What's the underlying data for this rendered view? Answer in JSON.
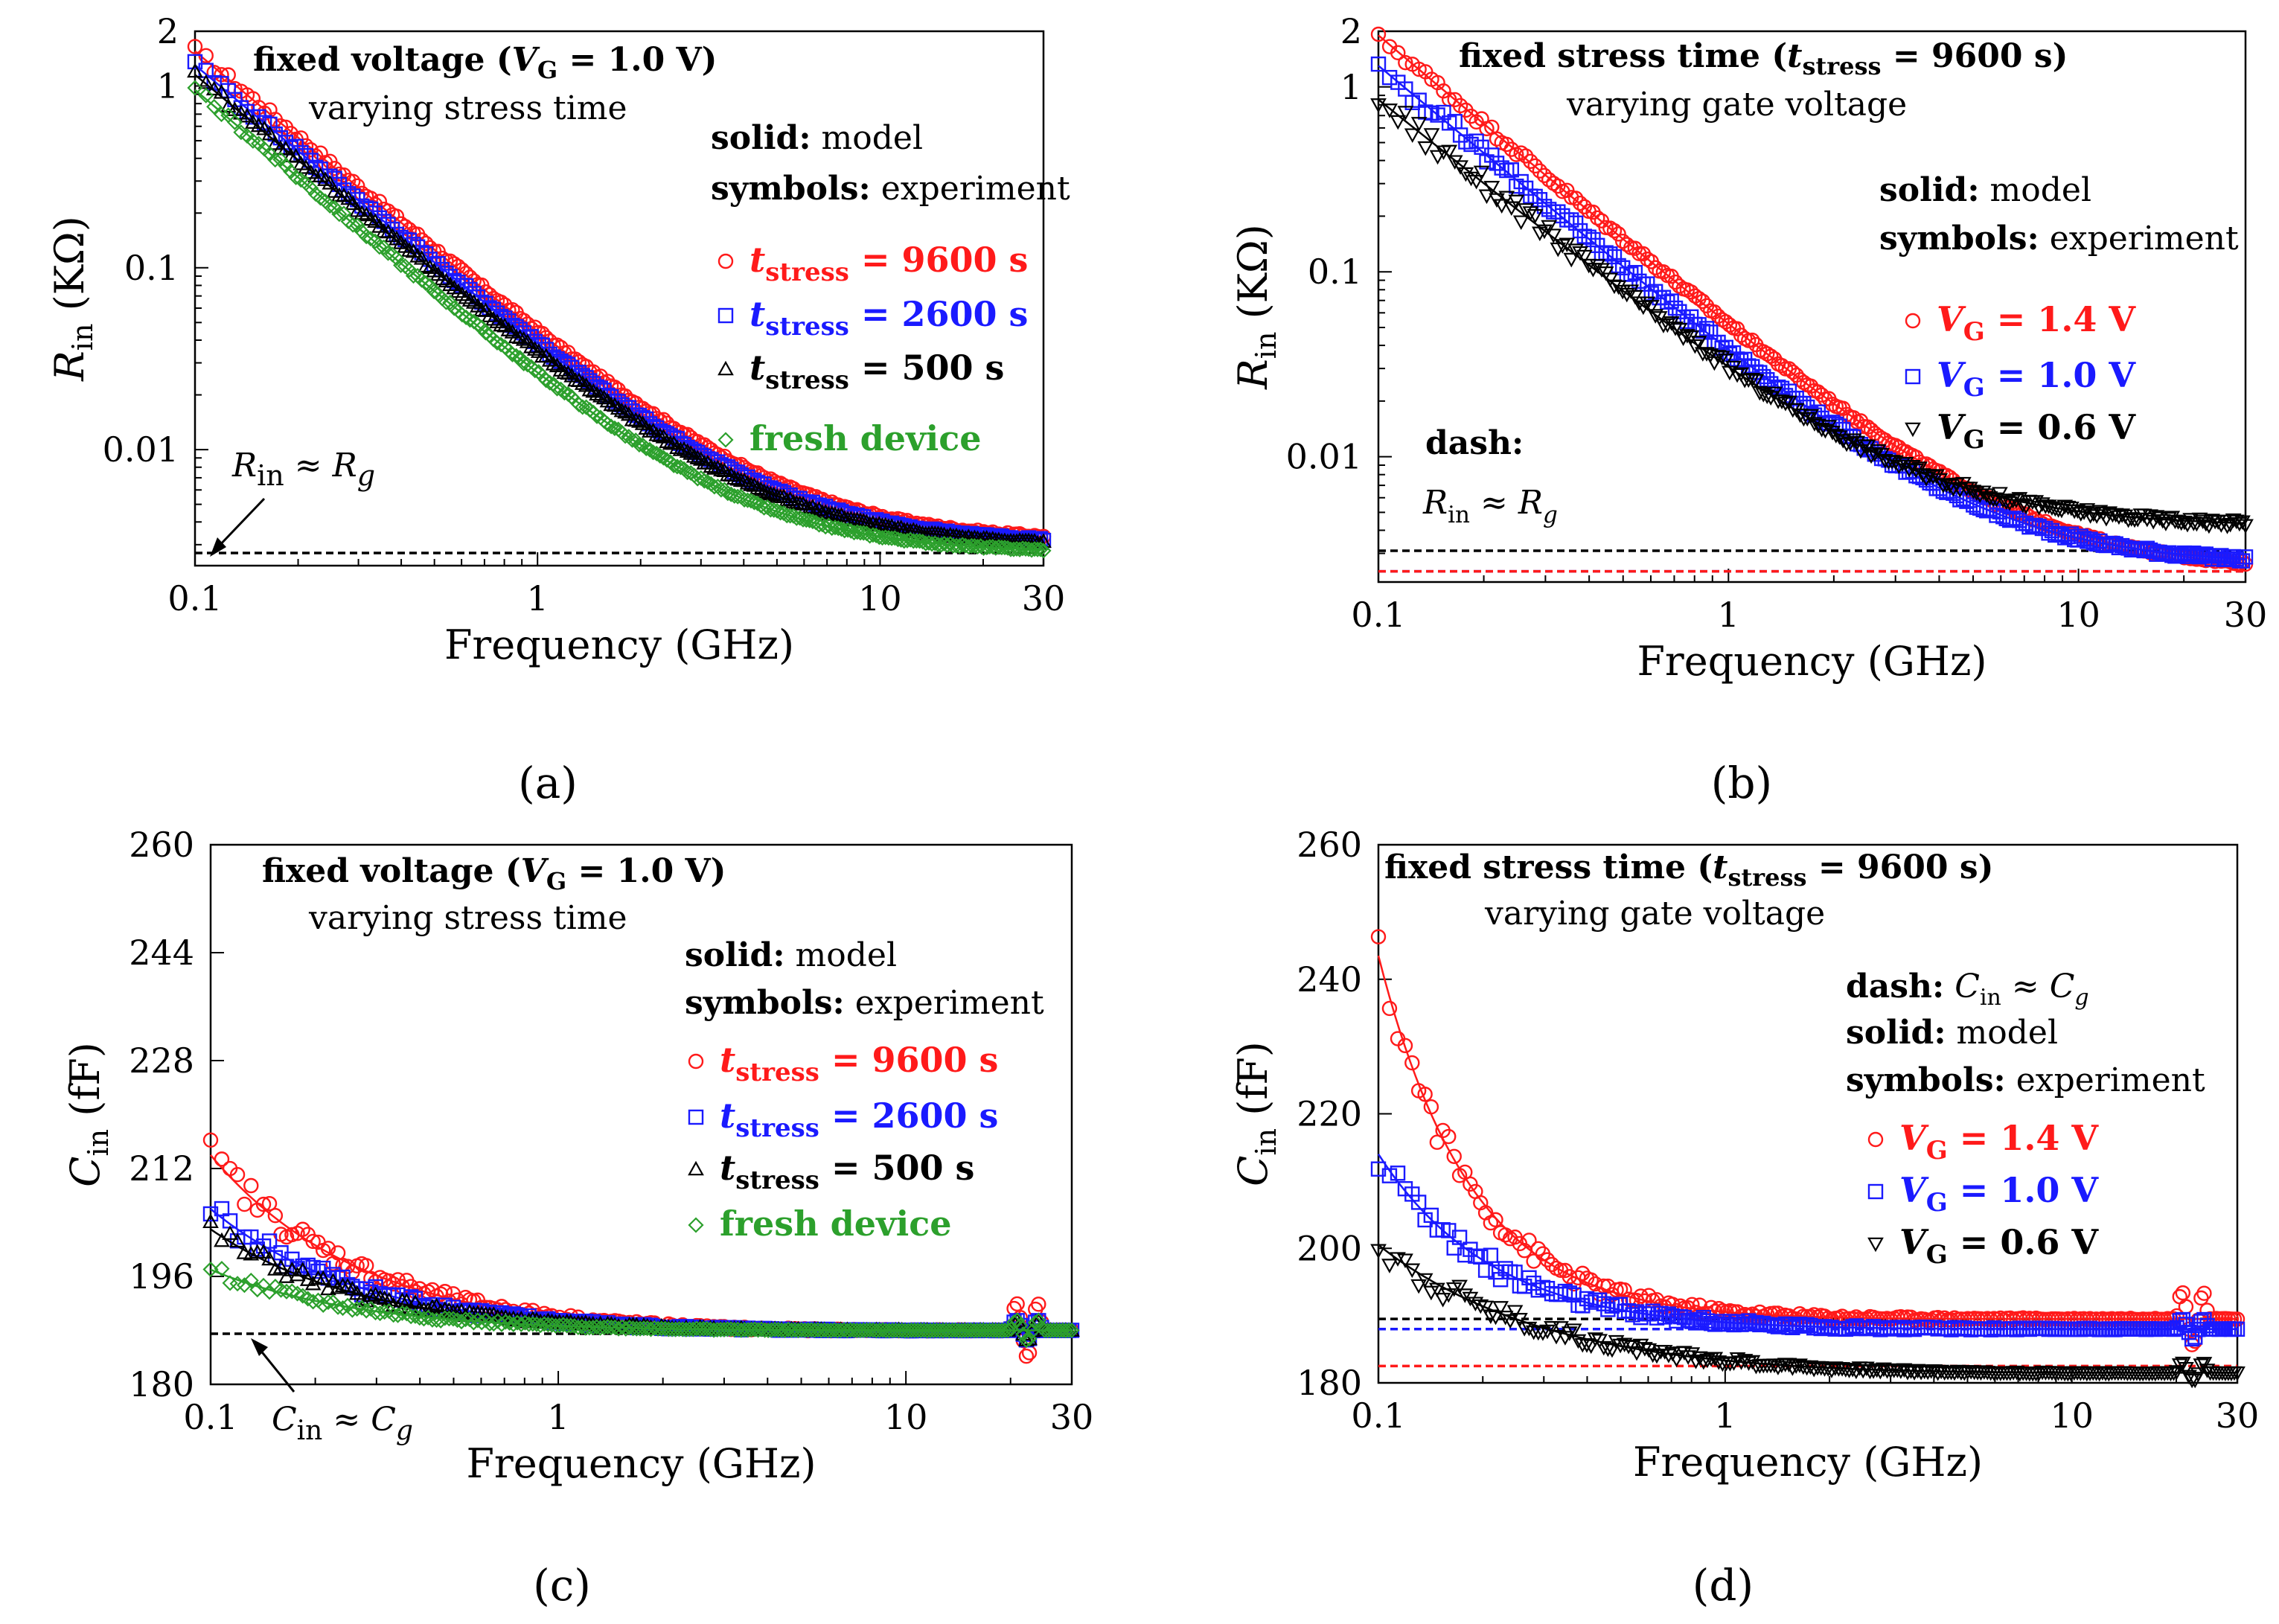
{
  "figure": {
    "panels": [
      {
        "id": "a",
        "label": "(a)"
      },
      {
        "id": "b",
        "label": "(b)"
      },
      {
        "id": "c",
        "label": "(c)"
      },
      {
        "id": "d",
        "label": "(d)"
      }
    ]
  },
  "colors": {
    "red": "#ff1a1a",
    "blue": "#1a1aff",
    "black": "#000000",
    "green": "#2ca02c"
  },
  "chart_data": [
    {
      "id": "a",
      "type": "scatter",
      "xscale": "log",
      "yscale": "log",
      "xlabel": "Frequency (GHz)",
      "ylabel": "R_in (KΩ)",
      "xlim": [
        0.1,
        30
      ],
      "ylim": [
        0.0023,
        2
      ],
      "xticks": [
        {
          "v": 0.1,
          "l": "0.1"
        },
        {
          "v": 1,
          "l": "1"
        },
        {
          "v": 10,
          "l": "10"
        },
        {
          "v": 30,
          "l": "30"
        }
      ],
      "yticks": [
        {
          "v": 0.01,
          "l": "0.01"
        },
        {
          "v": 0.1,
          "l": "0.1"
        },
        {
          "v": 1,
          "l": "1"
        },
        {
          "v": 2,
          "l": "2"
        }
      ],
      "title_line1_pre": "fixed voltage (",
      "title_line1_var": "V",
      "title_line1_sub": "G",
      "title_line1_post": " = 1.0 V)",
      "title_line2": "varying stress time",
      "note_solid_key": "solid:",
      "note_solid_val": " model",
      "note_symbols_key": "symbols:",
      "note_symbols_val": " experiment",
      "ref_label_main": "R",
      "ref_label_sub": "in",
      "ref_label_rel": " ≈ ",
      "ref_label_main2": "R",
      "ref_label_sub2": "g",
      "ref_line": 0.0027,
      "series": [
        {
          "name": "t_stress = 9600 s",
          "var": "t",
          "sub": "stress",
          "val": " = 9600 s",
          "color": "#ff1a1a",
          "marker": "circle",
          "A": 1.55,
          "p": 1.45,
          "c": 0.0031,
          "k": 0.32,
          "noise": 0.06
        },
        {
          "name": "t_stress = 2600 s",
          "var": "t",
          "sub": "stress",
          "val": " = 2600 s",
          "color": "#1a1aff",
          "marker": "square",
          "A": 1.3,
          "p": 1.45,
          "c": 0.003,
          "k": 0.3,
          "noise": 0.05
        },
        {
          "name": "t_stress = 500 s",
          "var": "t",
          "sub": "stress",
          "val": " = 500 s",
          "color": "#000000",
          "marker": "triangle",
          "A": 1.15,
          "p": 1.45,
          "c": 0.0029,
          "k": 0.28,
          "noise": 0.05
        },
        {
          "name": "fresh device",
          "var": "",
          "sub": "",
          "val": "fresh device",
          "color": "#2ca02c",
          "marker": "diamond",
          "A": 0.95,
          "p": 1.5,
          "c": 0.0027,
          "k": 0.26,
          "noise": 0.04
        }
      ]
    },
    {
      "id": "b",
      "type": "scatter",
      "xscale": "log",
      "yscale": "log",
      "xlabel": "Frequency (GHz)",
      "ylabel": "R_in (KΩ)",
      "xlim": [
        0.1,
        30
      ],
      "ylim": [
        0.0021,
        2
      ],
      "xticks": [
        {
          "v": 0.1,
          "l": "0.1"
        },
        {
          "v": 1,
          "l": "1"
        },
        {
          "v": 10,
          "l": "10"
        },
        {
          "v": 30,
          "l": "30"
        }
      ],
      "yticks": [
        {
          "v": 0.01,
          "l": "0.01"
        },
        {
          "v": 0.1,
          "l": "0.1"
        },
        {
          "v": 1,
          "l": "1"
        },
        {
          "v": 2,
          "l": "2"
        }
      ],
      "title_line1_pre": "fixed stress time (",
      "title_line1_var": "t",
      "title_line1_sub": "stress",
      "title_line1_post": " = 9600 s)",
      "title_line2": "varying gate voltage",
      "note_solid_key": "solid:",
      "note_solid_val": " model",
      "note_symbols_key": "symbols:",
      "note_symbols_val": " experiment",
      "dash_key": "dash:",
      "ref_label_main": "R",
      "ref_label_sub": "in",
      "ref_label_rel": " ≈ ",
      "ref_label_main2": "R",
      "ref_label_sub2": "g",
      "ref_lines": [
        0.0031,
        0.0024,
        0.0024
      ],
      "series": [
        {
          "name": "V_G = 1.4 V",
          "var": "V",
          "sub": "G",
          "val": " = 1.4 V",
          "color": "#ff1a1a",
          "marker": "circle",
          "A": 1.9,
          "p": 1.45,
          "c": 0.0024,
          "k": 0.35,
          "noise": 0.06
        },
        {
          "name": "V_G = 1.0 V",
          "var": "V",
          "sub": "G",
          "val": " = 1.0 V",
          "color": "#1a1aff",
          "marker": "square",
          "A": 1.3,
          "p": 1.45,
          "c": 0.0026,
          "k": 0.3,
          "noise": 0.1
        },
        {
          "name": "V_G = 0.6 V",
          "var": "V",
          "sub": "G",
          "val": " = 0.6 V",
          "color": "#000000",
          "marker": "triangle-down",
          "A": 0.85,
          "p": 1.4,
          "c": 0.0042,
          "k": 0.28,
          "noise": 0.14
        }
      ]
    },
    {
      "id": "c",
      "type": "scatter",
      "xscale": "log",
      "yscale": "linear",
      "xlabel": "Frequency (GHz)",
      "ylabel": "C_in (fF)",
      "xlim": [
        0.1,
        30
      ],
      "ylim": [
        180,
        260
      ],
      "xticks": [
        {
          "v": 0.1,
          "l": "0.1"
        },
        {
          "v": 1,
          "l": "1"
        },
        {
          "v": 10,
          "l": "10"
        },
        {
          "v": 30,
          "l": "30"
        }
      ],
      "yticks": [
        {
          "v": 180,
          "l": "180"
        },
        {
          "v": 196,
          "l": "196"
        },
        {
          "v": 212,
          "l": "212"
        },
        {
          "v": 228,
          "l": "228"
        },
        {
          "v": 244,
          "l": "244"
        },
        {
          "v": 260,
          "l": "260"
        }
      ],
      "title_line1_pre": "fixed voltage (",
      "title_line1_var": "V",
      "title_line1_sub": "G",
      "title_line1_post": " = 1.0 V)",
      "title_line2": "varying stress time",
      "note_solid_key": "solid:",
      "note_solid_val": " model",
      "note_symbols_key": "symbols:",
      "note_symbols_val": " experiment",
      "ref_label_main": "C",
      "ref_label_sub": "in",
      "ref_label_rel": " ≈ ",
      "ref_label_main2": "C",
      "ref_label_sub2": "g",
      "ref_line": 187.5,
      "series": [
        {
          "name": "t_stress = 9600 s",
          "var": "t",
          "sub": "stress",
          "val": " = 9600 s",
          "color": "#ff1a1a",
          "marker": "circle",
          "base": 188,
          "A": 26,
          "p": 1.0,
          "noise": 2.5
        },
        {
          "name": "t_stress = 2600 s",
          "var": "t",
          "sub": "stress",
          "val": " = 2600 s",
          "color": "#1a1aff",
          "marker": "square",
          "base": 188,
          "A": 18,
          "p": 1.0,
          "noise": 2.0
        },
        {
          "name": "t_stress = 500 s",
          "var": "t",
          "sub": "stress",
          "val": " = 500 s",
          "color": "#000000",
          "marker": "triangle",
          "base": 188,
          "A": 15,
          "p": 1.0,
          "noise": 1.6
        },
        {
          "name": "fresh device",
          "var": "",
          "sub": "",
          "val": "fresh device",
          "color": "#2ca02c",
          "marker": "diamond",
          "base": 188,
          "A": 9,
          "p": 1.0,
          "noise": 1.0
        }
      ]
    },
    {
      "id": "d",
      "type": "scatter",
      "xscale": "log",
      "yscale": "linear",
      "xlabel": "Frequency (GHz)",
      "ylabel": "C_in (fF)",
      "xlim": [
        0.1,
        30
      ],
      "ylim": [
        180,
        260
      ],
      "xticks": [
        {
          "v": 0.1,
          "l": "0.1"
        },
        {
          "v": 1,
          "l": "1"
        },
        {
          "v": 10,
          "l": "10"
        },
        {
          "v": 30,
          "l": "30"
        }
      ],
      "yticks": [
        {
          "v": 180,
          "l": "180"
        },
        {
          "v": 200,
          "l": "200"
        },
        {
          "v": 220,
          "l": "220"
        },
        {
          "v": 240,
          "l": "240"
        },
        {
          "v": 260,
          "l": "260"
        }
      ],
      "title_line1_pre": "fixed stress time (",
      "title_line1_var": "t",
      "title_line1_sub": "stress",
      "title_line1_post": " = 9600 s)",
      "title_line2": "varying gate voltage",
      "note_solid_key": "solid:",
      "note_solid_val": " model",
      "note_symbols_key": "symbols:",
      "note_symbols_val": " experiment",
      "dash_key": "dash:",
      "ref_label_main": "C",
      "ref_label_sub": "in",
      "ref_label_rel": " ≈ ",
      "ref_label_main2": "C",
      "ref_label_sub2": "g",
      "ref_lines": [
        189.5,
        188,
        182.5
      ],
      "series": [
        {
          "name": "V_G = 1.4 V",
          "var": "V",
          "sub": "G",
          "val": " = 1.4 V",
          "color": "#ff1a1a",
          "marker": "circle",
          "base": 189.5,
          "A": 54,
          "p": 1.6,
          "noise": 3.0
        },
        {
          "name": "V_G = 1.0 V",
          "var": "V",
          "sub": "G",
          "val": " = 1.0 V",
          "color": "#1a1aff",
          "marker": "square",
          "base": 188,
          "A": 26,
          "p": 1.3,
          "noise": 2.5
        },
        {
          "name": "V_G = 0.6 V",
          "var": "V",
          "sub": "G",
          "val": " = 0.6 V",
          "color": "#000000",
          "marker": "triangle-down",
          "base": 181.5,
          "A": 19,
          "p": 0.9,
          "noise": 2.5
        }
      ]
    }
  ]
}
